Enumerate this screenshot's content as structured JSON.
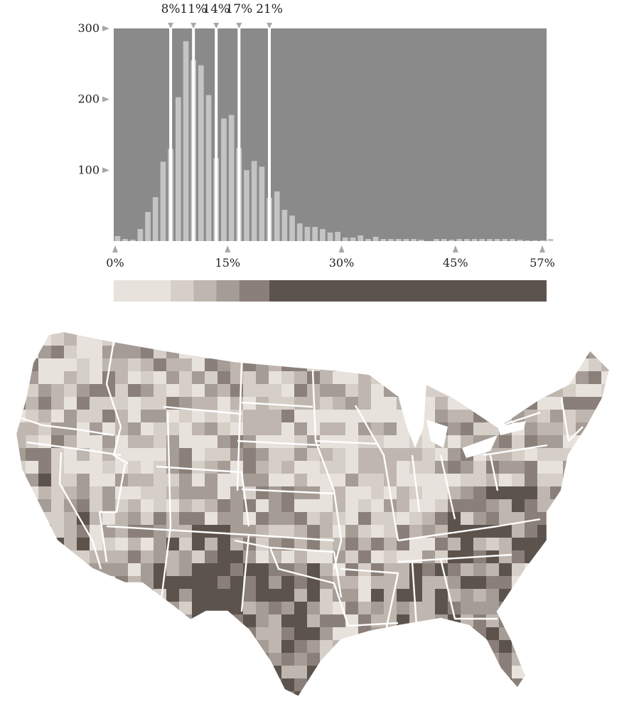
{
  "chart_data": {
    "type": "bar",
    "title": "",
    "xlabel": "",
    "ylabel": "",
    "x_ticks": [
      "0%",
      "15%",
      "30%",
      "45%",
      "57%"
    ],
    "x_tick_values": [
      0,
      15,
      30,
      45,
      57
    ],
    "y_ticks": [
      "100",
      "200",
      "300"
    ],
    "y_tick_values": [
      100,
      200,
      300
    ],
    "xlim": [
      0,
      57
    ],
    "ylim": [
      0,
      300
    ],
    "class_breaks": [
      "8%",
      "11%",
      "14%",
      "17%",
      "21%"
    ],
    "class_break_values": [
      8,
      11,
      14,
      17,
      21
    ],
    "bin_width": 1,
    "x": [
      0,
      1,
      2,
      3,
      4,
      5,
      6,
      7,
      8,
      9,
      10,
      11,
      12,
      13,
      14,
      15,
      16,
      17,
      18,
      19,
      20,
      21,
      22,
      23,
      24,
      25,
      26,
      27,
      28,
      29,
      30,
      31,
      32,
      33,
      34,
      35,
      36,
      37,
      38,
      39,
      40,
      41,
      42,
      43,
      44,
      45,
      46,
      47,
      48,
      49,
      50,
      51,
      52,
      53,
      54,
      55,
      56,
      57
    ],
    "values": [
      7,
      3,
      2,
      17,
      41,
      62,
      112,
      130,
      203,
      282,
      255,
      248,
      206,
      117,
      173,
      178,
      131,
      100,
      113,
      105,
      61,
      70,
      44,
      36,
      25,
      20,
      20,
      17,
      12,
      13,
      5,
      5,
      8,
      3,
      6,
      3,
      3,
      3,
      3,
      3,
      2,
      0,
      3,
      3,
      2,
      3,
      3,
      3,
      3,
      3,
      3,
      3,
      3,
      2,
      1,
      1,
      1,
      3
    ],
    "legend_colors": [
      "#e8e2dc",
      "#d6cfc8",
      "#bfb7af",
      "#a59c95",
      "#8a8079",
      "#5c534c"
    ],
    "colors": {
      "plot_background": "#8a8a8a",
      "bar": "#c4c4c4",
      "break_line": "#ffffff",
      "marker": "#a8a8a8"
    },
    "map_description": "Choropleth map of the contiguous United States by county, shaded with the six-class palette above; state borders drawn in white."
  }
}
